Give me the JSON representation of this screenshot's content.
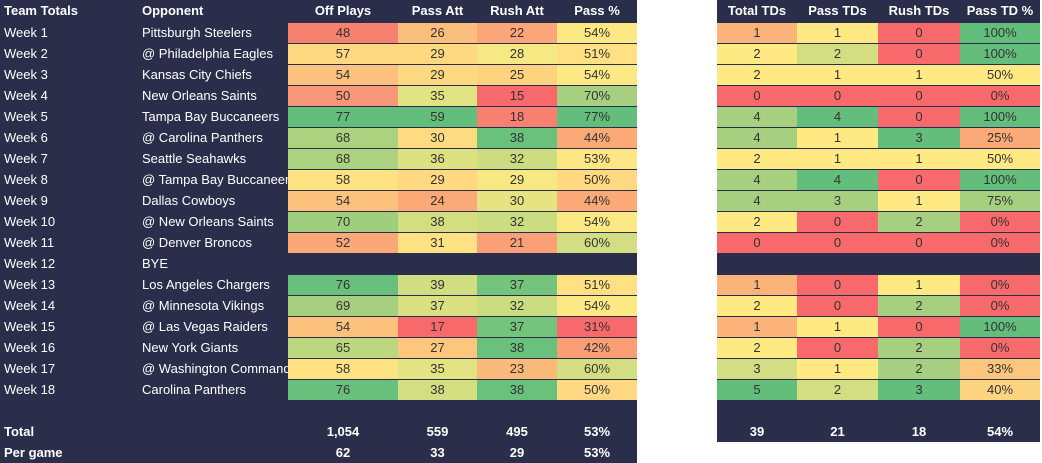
{
  "left": {
    "headers": [
      "Team Totals",
      "Opponent",
      "Off Plays",
      "Pass Att",
      "Rush Att",
      "Pass %"
    ],
    "rows": [
      {
        "week": "Week 1",
        "opp": "Pittsburgh Steelers",
        "plays": "48",
        "pass": "26",
        "rush": "22",
        "pct": "54%",
        "colors": [
          "#f7816f",
          "#fbbf7c",
          "#fba679",
          "#fde983"
        ]
      },
      {
        "week": "Week 2",
        "opp": "@ Philadelphia Eagles",
        "plays": "57",
        "pass": "29",
        "rush": "28",
        "pct": "51%",
        "colors": [
          "#fed981",
          "#fed981",
          "#f6e883",
          "#ffe083"
        ]
      },
      {
        "week": "Week 3",
        "opp": "Kansas City Chiefs",
        "plays": "54",
        "pass": "29",
        "rush": "25",
        "pct": "54%",
        "colors": [
          "#fcc17c",
          "#fed981",
          "#fdd37f",
          "#fde983"
        ]
      },
      {
        "week": "Week 4",
        "opp": "New Orleans Saints",
        "plays": "50",
        "pass": "35",
        "rush": "15",
        "pct": "70%",
        "colors": [
          "#f9977a",
          "#e2e382",
          "#f8696b",
          "#a6d07f"
        ]
      },
      {
        "week": "Week 5",
        "opp": "Tampa Bay Buccaneers",
        "plays": "77",
        "pass": "59",
        "rush": "18",
        "pct": "77%",
        "colors": [
          "#63be7b",
          "#63be7b",
          "#f88070",
          "#63be7b"
        ]
      },
      {
        "week": "Week 6",
        "opp": "@ Carolina Panthers",
        "plays": "68",
        "pass": "30",
        "rush": "38",
        "pct": "44%",
        "colors": [
          "#acd27f",
          "#feda81",
          "#6ac17c",
          "#fbaa77"
        ]
      },
      {
        "week": "Week 7",
        "opp": "Seattle Seahawks",
        "plays": "68",
        "pass": "36",
        "rush": "32",
        "pct": "53%",
        "colors": [
          "#acd27f",
          "#dee182",
          "#cbdc81",
          "#fde683"
        ]
      },
      {
        "week": "Week 8",
        "opp": "@ Tampa Bay Buccaneers",
        "plays": "58",
        "pass": "29",
        "rush": "29",
        "pct": "50%",
        "colors": [
          "#ffe383",
          "#fed981",
          "#f8e883",
          "#fed981"
        ]
      },
      {
        "week": "Week 9",
        "opp": "Dallas Cowboys",
        "plays": "54",
        "pass": "24",
        "rush": "30",
        "pct": "44%",
        "colors": [
          "#fcc17c",
          "#fbaa77",
          "#e6e382",
          "#fbaa77"
        ]
      },
      {
        "week": "Week 10",
        "opp": "@ New Orleans Saints",
        "plays": "70",
        "pass": "38",
        "rush": "32",
        "pct": "54%",
        "colors": [
          "#a0ce7f",
          "#d3de81",
          "#cbdc81",
          "#fde983"
        ]
      },
      {
        "week": "Week 11",
        "opp": "@ Denver Broncos",
        "plays": "52",
        "pass": "31",
        "rush": "21",
        "pct": "60%",
        "colors": [
          "#faa878",
          "#fee182",
          "#fb9f76",
          "#d2de81"
        ]
      },
      {
        "week": "Week 12",
        "opp": "BYE",
        "plays": "",
        "pass": "",
        "rush": "",
        "pct": "",
        "colors": []
      },
      {
        "week": "Week 13",
        "opp": "Los Angeles Chargers",
        "plays": "76",
        "pass": "39",
        "rush": "37",
        "pct": "51%",
        "colors": [
          "#69c07c",
          "#d0dd81",
          "#75c47d",
          "#ffe083"
        ]
      },
      {
        "week": "Week 14",
        "opp": "@ Minnesota Vikings",
        "plays": "69",
        "pass": "37",
        "rush": "32",
        "pct": "54%",
        "colors": [
          "#a6d07f",
          "#d9e082",
          "#cbdc81",
          "#fde983"
        ]
      },
      {
        "week": "Week 15",
        "opp": "@ Las Vegas Raiders",
        "plays": "54",
        "pass": "17",
        "rush": "37",
        "pct": "31%",
        "colors": [
          "#fcc17c",
          "#f8696b",
          "#75c47d",
          "#f8696b"
        ]
      },
      {
        "week": "Week 16",
        "opp": "New York Giants",
        "plays": "65",
        "pass": "27",
        "rush": "38",
        "pct": "42%",
        "colors": [
          "#bcd780",
          "#fcc67d",
          "#6ac17c",
          "#fa9f75"
        ]
      },
      {
        "week": "Week 17",
        "opp": "@ Washington Commanders",
        "plays": "58",
        "pass": "35",
        "rush": "23",
        "pct": "60%",
        "colors": [
          "#ffe383",
          "#e2e382",
          "#fbb97a",
          "#d2de81"
        ]
      },
      {
        "week": "Week 18",
        "opp": "Carolina Panthers",
        "plays": "76",
        "pass": "38",
        "rush": "38",
        "pct": "50%",
        "colors": [
          "#69c07c",
          "#d3de81",
          "#6ac17c",
          "#fed981"
        ]
      }
    ],
    "total": {
      "label": "Total",
      "plays": "1,054",
      "pass": "559",
      "rush": "495",
      "pct": "53%"
    },
    "pergame": {
      "label": "Per game",
      "plays": "62",
      "pass": "33",
      "rush": "29",
      "pct": "53%"
    }
  },
  "right": {
    "headers": [
      "Total TDs",
      "Pass TDs",
      "Rush TDs",
      "Pass TD %"
    ],
    "rows": [
      {
        "total": "1",
        "pass": "1",
        "rush": "0",
        "pct": "100%",
        "colors": [
          "#fbb37a",
          "#fee983",
          "#f8696b",
          "#63be7b"
        ]
      },
      {
        "total": "2",
        "pass": "2",
        "rush": "0",
        "pct": "100%",
        "colors": [
          "#fee983",
          "#d2de81",
          "#f8696b",
          "#63be7b"
        ]
      },
      {
        "total": "2",
        "pass": "1",
        "rush": "1",
        "pct": "50%",
        "colors": [
          "#fee983",
          "#fee983",
          "#fee983",
          "#fee983"
        ]
      },
      {
        "total": "0",
        "pass": "0",
        "rush": "0",
        "pct": "0%",
        "colors": [
          "#f8696b",
          "#f8696b",
          "#f8696b",
          "#f8696b"
        ]
      },
      {
        "total": "4",
        "pass": "4",
        "rush": "0",
        "pct": "100%",
        "colors": [
          "#a6d07f",
          "#63be7b",
          "#f8696b",
          "#63be7b"
        ]
      },
      {
        "total": "4",
        "pass": "1",
        "rush": "3",
        "pct": "25%",
        "colors": [
          "#a6d07f",
          "#fee983",
          "#63be7b",
          "#fbaa77"
        ]
      },
      {
        "total": "2",
        "pass": "1",
        "rush": "1",
        "pct": "50%",
        "colors": [
          "#fee983",
          "#fee983",
          "#fee983",
          "#fee983"
        ]
      },
      {
        "total": "4",
        "pass": "4",
        "rush": "0",
        "pct": "100%",
        "colors": [
          "#a6d07f",
          "#63be7b",
          "#f8696b",
          "#63be7b"
        ]
      },
      {
        "total": "4",
        "pass": "3",
        "rush": "1",
        "pct": "75%",
        "colors": [
          "#a6d07f",
          "#a6d07f",
          "#fee983",
          "#a6d07f"
        ]
      },
      {
        "total": "2",
        "pass": "0",
        "rush": "2",
        "pct": "0%",
        "colors": [
          "#fee983",
          "#f8696b",
          "#a6d07f",
          "#f8696b"
        ]
      },
      {
        "total": "0",
        "pass": "0",
        "rush": "0",
        "pct": "0%",
        "colors": [
          "#f8696b",
          "#f8696b",
          "#f8696b",
          "#f8696b"
        ]
      },
      null,
      {
        "total": "1",
        "pass": "0",
        "rush": "1",
        "pct": "0%",
        "colors": [
          "#fbb37a",
          "#f8696b",
          "#fee983",
          "#f8696b"
        ]
      },
      {
        "total": "2",
        "pass": "0",
        "rush": "2",
        "pct": "0%",
        "colors": [
          "#fee983",
          "#f8696b",
          "#a6d07f",
          "#f8696b"
        ]
      },
      {
        "total": "1",
        "pass": "1",
        "rush": "0",
        "pct": "100%",
        "colors": [
          "#fbb37a",
          "#fee983",
          "#f8696b",
          "#63be7b"
        ]
      },
      {
        "total": "2",
        "pass": "0",
        "rush": "2",
        "pct": "0%",
        "colors": [
          "#fee983",
          "#f8696b",
          "#a6d07f",
          "#f8696b"
        ]
      },
      {
        "total": "3",
        "pass": "1",
        "rush": "2",
        "pct": "33%",
        "colors": [
          "#d2de81",
          "#fee983",
          "#a6d07f",
          "#fcc67d"
        ]
      },
      {
        "total": "5",
        "pass": "2",
        "rush": "3",
        "pct": "40%",
        "colors": [
          "#63be7b",
          "#d2de81",
          "#63be7b",
          "#fdd580"
        ]
      }
    ],
    "total": {
      "total": "39",
      "pass": "21",
      "rush": "18",
      "pct": "54%"
    }
  }
}
